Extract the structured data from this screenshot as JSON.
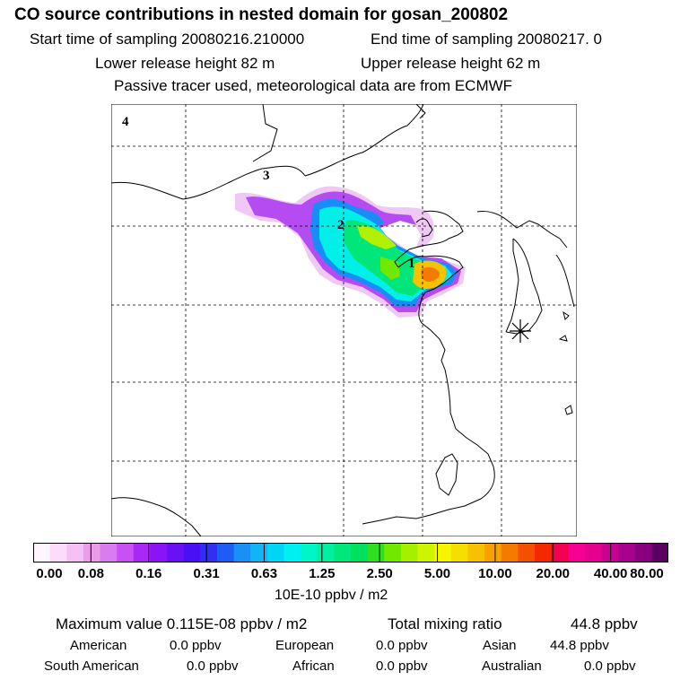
{
  "header": {
    "title": "CO  source contributions in nested domain for gosan_200802",
    "start_label": "Start time of sampling 20080216.210000",
    "end_label": "End time of sampling 20080217.     0",
    "lower_label": "Lower release height   82 m",
    "upper_label": "Upper release height   62 m",
    "note": "Passive tracer used, meteorological data are from ECMWF"
  },
  "map": {
    "labels": [
      "4",
      "3",
      "2",
      "1"
    ],
    "receptor": "Gosan station marker"
  },
  "colorbar": {
    "ticks": [
      "0.00",
      "0.08",
      "0.16",
      "0.31",
      "0.63",
      "1.25",
      "2.50",
      "5.00",
      "10.00",
      "20.00",
      "40.00",
      "80.00"
    ],
    "unit": "10E-10 ppbv / m2",
    "colors": [
      "#fff5ff",
      "#fbdcfb",
      "#f5c0f5",
      "#eb9ceb",
      "#d97cef",
      "#c850f5",
      "#a828f8",
      "#8a14f5",
      "#6a10f5",
      "#4a10f5",
      "#3030f5",
      "#1f5cf5",
      "#1890f5",
      "#10b5f5",
      "#00d5f5",
      "#00f0f0",
      "#00f5c8",
      "#00f0a0",
      "#00e87a",
      "#00e060",
      "#30e020",
      "#70e800",
      "#a5f000",
      "#cdf500",
      "#f5f500",
      "#f5de00",
      "#f5c200",
      "#f5a200",
      "#f57a00",
      "#f55000",
      "#f52800",
      "#f50050",
      "#f50090",
      "#e5008d",
      "#ca0090",
      "#a8008e",
      "#880080",
      "#5a0060"
    ]
  },
  "summary": {
    "max_label": "Maximum value  0.115E-08 ppbv / m2",
    "total_label": "Total mixing ratio",
    "total_value": "44.8 ppbv",
    "regions": [
      {
        "name": "American",
        "value": "0.0 ppbv"
      },
      {
        "name": "European",
        "value": "0.0 ppbv"
      },
      {
        "name": "Asian",
        "value": "44.8 ppbv"
      },
      {
        "name": "South American",
        "value": "0.0 ppbv"
      },
      {
        "name": "African",
        "value": "0.0 ppbv"
      },
      {
        "name": "Australian",
        "value": "0.0 ppbv"
      }
    ]
  }
}
